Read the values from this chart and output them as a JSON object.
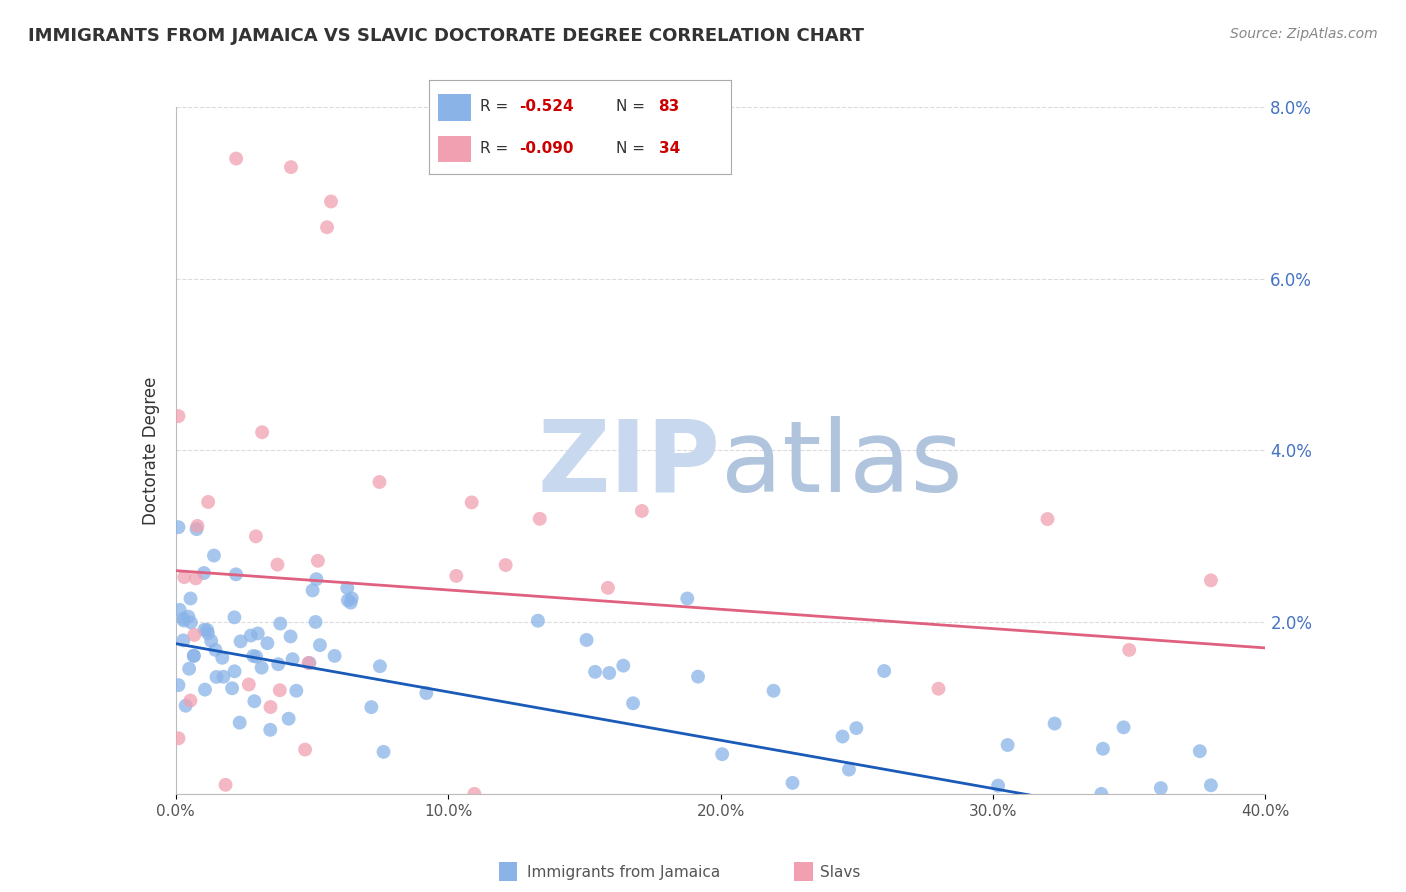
{
  "title": "IMMIGRANTS FROM JAMAICA VS SLAVIC DOCTORATE DEGREE CORRELATION CHART",
  "source": "Source: ZipAtlas.com",
  "ylabel_left": "Doctorate Degree",
  "xlim": [
    0.0,
    0.4
  ],
  "ylim": [
    0.0,
    0.08
  ],
  "xticks": [
    0.0,
    0.1,
    0.2,
    0.3,
    0.4
  ],
  "xtick_labels": [
    "0.0%",
    "10.0%",
    "20.0%",
    "30.0%",
    "40.0%"
  ],
  "yticks_right": [
    0.0,
    0.02,
    0.04,
    0.06,
    0.08
  ],
  "ytick_labels_right": [
    "",
    "2.0%",
    "4.0%",
    "6.0%",
    "8.0%"
  ],
  "background_color": "#ffffff",
  "grid_color": "#cccccc",
  "title_color": "#333333",
  "title_fontsize": 13,
  "watermark_zip_color": "#c8d8ee",
  "watermark_atlas_color": "#b0c4de",
  "series": [
    {
      "name": "Immigrants from Jamaica",
      "color": "#8ab4e8",
      "R": -0.524,
      "N": 83,
      "line_color": "#1a5ab8",
      "trend_y_start": 0.0175,
      "trend_y_end": -0.005,
      "trend_solid_end": 0.32
    },
    {
      "name": "Slavs",
      "color": "#f0a0b0",
      "R": -0.09,
      "N": 34,
      "line_color": "#e06080",
      "trend_y_start": 0.026,
      "trend_y_end": 0.017,
      "trend_solid_end": 0.4
    }
  ]
}
